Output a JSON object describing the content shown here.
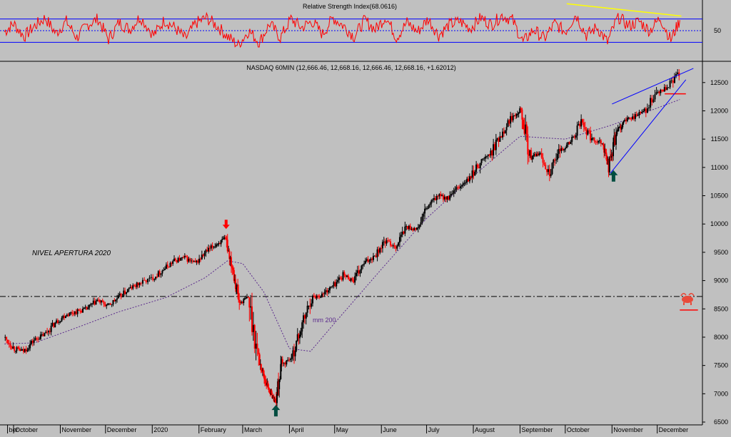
{
  "chart_data": [
    {
      "type": "line",
      "title": "Relative Strength Index(68.0616)",
      "ylabel": "",
      "ylim": [
        0,
        100
      ],
      "yticks": [
        50
      ],
      "levels": [
        30,
        50,
        70
      ],
      "grid": false,
      "series": [
        {
          "color": "#ff0000",
          "x": [
            "2019-09-25",
            "2019-10-01",
            "2019-10-08",
            "2019-10-15",
            "2019-10-22",
            "2019-10-29",
            "2019-11-05",
            "2019-11-12",
            "2019-11-19",
            "2019-11-26",
            "2019-12-03",
            "2019-12-10",
            "2019-12-17",
            "2019-12-24",
            "2020-01-02",
            "2020-01-09",
            "2020-01-16",
            "2020-01-23",
            "2020-01-30",
            "2020-02-06",
            "2020-02-13",
            "2020-02-20",
            "2020-02-27",
            "2020-03-05",
            "2020-03-12",
            "2020-03-19",
            "2020-03-26",
            "2020-04-02",
            "2020-04-09",
            "2020-04-16",
            "2020-04-23",
            "2020-04-30",
            "2020-05-07",
            "2020-05-14",
            "2020-05-21",
            "2020-05-28",
            "2020-06-04",
            "2020-06-11",
            "2020-06-18",
            "2020-06-25",
            "2020-07-02",
            "2020-07-09",
            "2020-07-16",
            "2020-07-23",
            "2020-07-30",
            "2020-08-06",
            "2020-08-13",
            "2020-08-20",
            "2020-08-27",
            "2020-09-03",
            "2020-09-10",
            "2020-09-17",
            "2020-09-24",
            "2020-10-01",
            "2020-10-08",
            "2020-10-15",
            "2020-10-22",
            "2020-10-29",
            "2020-11-05",
            "2020-11-12",
            "2020-11-19",
            "2020-11-26",
            "2020-12-03",
            "2020-12-10",
            "2020-12-16"
          ],
          "values": [
            48,
            62,
            40,
            58,
            72,
            45,
            66,
            38,
            60,
            70,
            35,
            64,
            52,
            74,
            42,
            68,
            55,
            36,
            63,
            72,
            58,
            40,
            25,
            50,
            30,
            62,
            38,
            70,
            55,
            66,
            44,
            72,
            58,
            40,
            68,
            52,
            74,
            38,
            64,
            48,
            70,
            42,
            60,
            66,
            54,
            72,
            60,
            76,
            68,
            30,
            52,
            36,
            62,
            48,
            78,
            42,
            56,
            30,
            74,
            58,
            66,
            50,
            72,
            34,
            68
          ]
        }
      ],
      "annotations": [
        {
          "type": "trendline",
          "color": "#ffff00",
          "from": [
            "2020-10-02",
            96
          ],
          "to": [
            "2020-12-17",
            75
          ]
        }
      ]
    },
    {
      "type": "candlestick",
      "title": "NASDAQ 60MIN (12,666.46, 12,668.16, 12,666.46, 12,668.16, +1.62012)",
      "xlabel": "",
      "ylabel": "",
      "ylim": [
        6450,
        12850
      ],
      "yticks": [
        6500,
        7000,
        7500,
        8000,
        8500,
        9000,
        9500,
        10000,
        10500,
        11000,
        11500,
        12000,
        12500
      ],
      "xticks": [
        {
          "date": "2019-09-27",
          "label": "ber"
        },
        {
          "date": "2019-10-01",
          "label": "October"
        },
        {
          "date": "2019-11-01",
          "label": "November"
        },
        {
          "date": "2019-12-01",
          "label": "December"
        },
        {
          "date": "2020-01-01",
          "label": "2020"
        },
        {
          "date": "2020-02-01",
          "label": "February"
        },
        {
          "date": "2020-03-01",
          "label": "March"
        },
        {
          "date": "2020-04-01",
          "label": "April"
        },
        {
          "date": "2020-05-01",
          "label": "May"
        },
        {
          "date": "2020-06-01",
          "label": "June"
        },
        {
          "date": "2020-07-01",
          "label": "July"
        },
        {
          "date": "2020-08-01",
          "label": "August"
        },
        {
          "date": "2020-09-01",
          "label": "September"
        },
        {
          "date": "2020-10-01",
          "label": "October"
        },
        {
          "date": "2020-11-01",
          "label": "November"
        },
        {
          "date": "2020-12-01",
          "label": "December"
        }
      ],
      "grid": false,
      "up_color": "#000000",
      "down_color": "#ff0000",
      "price_series": {
        "x": [
          "2019-09-25",
          "2019-10-02",
          "2019-10-08",
          "2019-10-15",
          "2019-10-22",
          "2019-10-29",
          "2019-11-05",
          "2019-11-12",
          "2019-11-19",
          "2019-11-26",
          "2019-12-03",
          "2019-12-10",
          "2019-12-17",
          "2019-12-24",
          "2020-01-02",
          "2020-01-09",
          "2020-01-16",
          "2020-01-23",
          "2020-01-30",
          "2020-02-06",
          "2020-02-13",
          "2020-02-19",
          "2020-02-24",
          "2020-02-28",
          "2020-03-05",
          "2020-03-12",
          "2020-03-16",
          "2020-03-20",
          "2020-03-23",
          "2020-03-27",
          "2020-04-03",
          "2020-04-09",
          "2020-04-16",
          "2020-04-23",
          "2020-04-30",
          "2020-05-07",
          "2020-05-14",
          "2020-05-21",
          "2020-05-28",
          "2020-06-04",
          "2020-06-11",
          "2020-06-18",
          "2020-06-25",
          "2020-07-02",
          "2020-07-09",
          "2020-07-16",
          "2020-07-23",
          "2020-07-30",
          "2020-08-06",
          "2020-08-13",
          "2020-08-20",
          "2020-08-27",
          "2020-09-02",
          "2020-09-08",
          "2020-09-14",
          "2020-09-21",
          "2020-09-28",
          "2020-10-05",
          "2020-10-12",
          "2020-10-19",
          "2020-10-26",
          "2020-10-30",
          "2020-11-04",
          "2020-11-09",
          "2020-11-16",
          "2020-11-23",
          "2020-12-01",
          "2020-12-08",
          "2020-12-16"
        ],
        "values": [
          8000,
          7800,
          7750,
          7950,
          8050,
          8250,
          8400,
          8450,
          8500,
          8650,
          8550,
          8700,
          8850,
          8950,
          9050,
          9200,
          9350,
          9400,
          9300,
          9500,
          9650,
          9730,
          9200,
          8600,
          8700,
          7600,
          7250,
          7000,
          6860,
          7500,
          7650,
          8150,
          8700,
          8750,
          8900,
          9100,
          9000,
          9300,
          9450,
          9700,
          9600,
          9950,
          9900,
          10300,
          10500,
          10450,
          10650,
          10800,
          11100,
          11250,
          11600,
          11900,
          12050,
          11150,
          11250,
          10900,
          11300,
          11450,
          11800,
          11500,
          11450,
          11000,
          11600,
          11800,
          11900,
          12000,
          12300,
          12400,
          12668.16
        ]
      },
      "overlays": [
        {
          "name": "mm 200",
          "style": "dotted",
          "color": "#5b2a8c",
          "x": [
            "2019-09-25",
            "2019-10-15",
            "2019-11-10",
            "2019-12-10",
            "2020-01-10",
            "2020-02-05",
            "2020-02-20",
            "2020-03-01",
            "2020-03-15",
            "2020-04-01",
            "2020-04-15",
            "2020-05-01",
            "2020-06-01",
            "2020-07-01",
            "2020-08-01",
            "2020-09-01",
            "2020-10-01",
            "2020-11-01",
            "2020-12-01",
            "2020-12-16"
          ],
          "values": [
            7880,
            7900,
            8150,
            8450,
            8700,
            9050,
            9350,
            9300,
            8800,
            7800,
            7750,
            8250,
            9200,
            10100,
            10850,
            11550,
            11500,
            11750,
            12050,
            12200
          ]
        }
      ],
      "horizontal_lines": [
        {
          "value": 8720,
          "style": "dash-dot",
          "color": "#000000",
          "label": "NIVEL APERTURA 2020"
        },
        {
          "value": 12300,
          "color": "#ff0000",
          "from": "2020-12-06",
          "to": "2020-12-20"
        },
        {
          "value": 8480,
          "color": "#ff0000",
          "from": "2020-12-16",
          "to": "2020-12-28"
        }
      ],
      "trendlines": [
        {
          "color": "#0000ff",
          "from": [
            "2020-11-01",
            12120
          ],
          "to": [
            "2020-12-25",
            12750
          ]
        },
        {
          "color": "#0000ff",
          "from": [
            "2020-10-31",
            10900
          ],
          "to": [
            "2020-12-20",
            12550
          ]
        }
      ],
      "markers": [
        {
          "type": "arrow-down",
          "color": "#ff0000",
          "date": "2020-02-19",
          "value": 9950
        },
        {
          "type": "arrow-up",
          "color": "#004d40",
          "date": "2020-03-23",
          "value": 6700
        },
        {
          "type": "arrow-up",
          "color": "#004d40",
          "date": "2020-11-02",
          "value": 10850
        }
      ]
    }
  ]
}
